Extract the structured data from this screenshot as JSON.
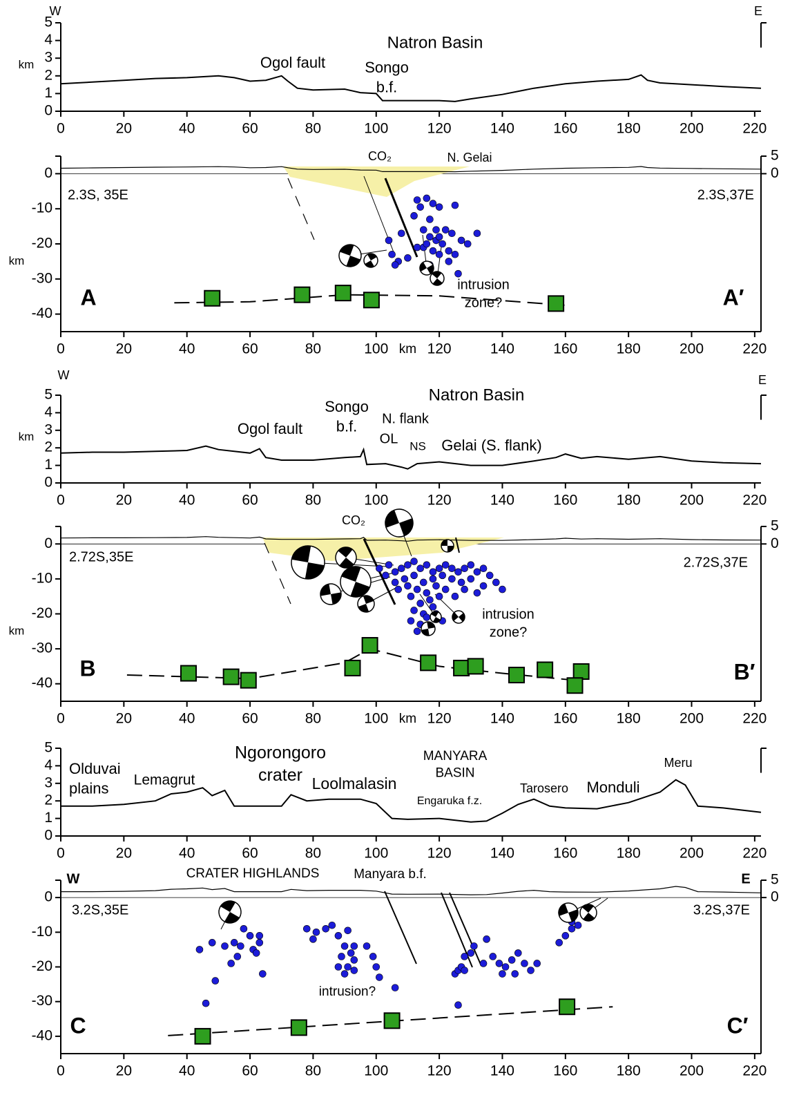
{
  "chart_data": [
    {
      "type": "line",
      "ylabel": "km",
      "xlim": [
        0,
        222
      ],
      "ylim": [
        0,
        5
      ],
      "xticks": [
        0,
        20,
        40,
        60,
        80,
        100,
        120,
        140,
        160,
        180,
        200,
        220
      ],
      "yticks": [
        0,
        1,
        2,
        3,
        4,
        5
      ],
      "x": [
        0,
        10,
        20,
        30,
        40,
        50,
        55,
        60,
        65,
        70,
        72,
        75,
        80,
        90,
        95,
        100,
        102,
        110,
        120,
        125,
        130,
        140,
        150,
        160,
        170,
        180,
        184,
        186,
        190,
        200,
        210,
        222
      ],
      "values": [
        1.55,
        1.65,
        1.75,
        1.85,
        1.9,
        2.0,
        1.9,
        1.7,
        1.75,
        2.0,
        1.7,
        1.3,
        1.2,
        1.25,
        1.05,
        1.0,
        0.6,
        0.6,
        0.6,
        0.55,
        0.7,
        0.95,
        1.3,
        1.55,
        1.7,
        1.8,
        2.05,
        1.75,
        1.6,
        1.5,
        1.4,
        1.3
      ],
      "color": "#000000",
      "annotations": [
        "W",
        "E",
        "Natron Basin",
        "Ogol fault",
        [
          "Songo",
          "b.f."
        ]
      ]
    },
    {
      "type": "scatter",
      "ylabel": "km",
      "xlabel": "km",
      "xlim": [
        0,
        222
      ],
      "ylim": [
        -45,
        5
      ],
      "xticks": [
        0,
        20,
        40,
        60,
        80,
        100,
        120,
        140,
        160,
        180,
        200,
        220
      ],
      "yticks": [
        -40,
        -30,
        -20,
        -10,
        0
      ],
      "y2ticks": [
        0,
        5
      ],
      "earthquakes": {
        "color": "#1c1cd8",
        "x": [
          113,
          116,
          118,
          114,
          120,
          125,
          112,
          117,
          119,
          115,
          108,
          122,
          124,
          132,
          127,
          117,
          119,
          121,
          113,
          115,
          118,
          120,
          123,
          125,
          129,
          123,
          117,
          110,
          105,
          107,
          104,
          106,
          126,
          120,
          116
        ],
        "y": [
          -7.5,
          -7,
          -8.5,
          -9.5,
          -9.5,
          -9,
          -12,
          -13,
          -16,
          -16,
          -17,
          -16,
          -17,
          -17,
          -19,
          -18,
          -19,
          -20,
          -21,
          -21,
          -22,
          -23,
          -22,
          -23,
          -20,
          -25,
          -26,
          -24,
          -23,
          -25,
          -19,
          -26,
          -28.5,
          -18,
          -20
        ]
      },
      "moho": {
        "color": "#2e9e1f",
        "x": [
          48,
          76.5,
          89.5,
          98.5,
          157
        ],
        "y": [
          -35.5,
          -34.5,
          -34,
          -36,
          -37
        ]
      },
      "moho_trend": {
        "x": [
          36,
          60,
          90,
          120,
          160
        ],
        "y": [
          -36.8,
          -36.5,
          -34.5,
          -34.8,
          -37.5
        ]
      },
      "annotations": [
        "2.3S, 35E",
        "2.3S,37E",
        "A",
        "A′",
        "CO₂",
        "N. Gelai",
        [
          "intrusion",
          "zone?"
        ]
      ]
    },
    {
      "type": "line",
      "ylabel": "km",
      "xlim": [
        0,
        222
      ],
      "ylim": [
        0,
        5
      ],
      "xticks": [
        0,
        20,
        40,
        60,
        80,
        100,
        120,
        140,
        160,
        180,
        200,
        220
      ],
      "yticks": [
        0,
        1,
        2,
        3,
        4,
        5
      ],
      "x": [
        0,
        10,
        20,
        30,
        40,
        46,
        50,
        55,
        60,
        63,
        65,
        70,
        80,
        90,
        95,
        96,
        97,
        103,
        108,
        110,
        113,
        120,
        130,
        140,
        150,
        157,
        160,
        165,
        170,
        180,
        190,
        200,
        210,
        222
      ],
      "values": [
        1.7,
        1.75,
        1.75,
        1.8,
        1.85,
        2.1,
        1.9,
        1.8,
        1.7,
        1.95,
        1.45,
        1.3,
        1.3,
        1.45,
        1.5,
        1.9,
        1.05,
        1.1,
        0.9,
        0.8,
        1.1,
        1.2,
        1.0,
        1.0,
        1.25,
        1.45,
        1.65,
        1.4,
        1.5,
        1.35,
        1.5,
        1.25,
        1.15,
        1.1
      ],
      "color": "#000000",
      "annotations": [
        "W",
        "E",
        "Natron Basin",
        [
          "Songo",
          "b.f."
        ],
        "Ogol fault",
        "N. flank",
        "OL",
        "NS",
        "Gelai (S. flank)"
      ]
    },
    {
      "type": "scatter",
      "ylabel": "km",
      "xlabel": "km",
      "xlim": [
        0,
        222
      ],
      "ylim": [
        -45,
        5
      ],
      "xticks": [
        0,
        20,
        40,
        60,
        80,
        100,
        120,
        140,
        160,
        180,
        200,
        220
      ],
      "yticks": [
        -40,
        -30,
        -20,
        -10,
        0
      ],
      "y2ticks": [
        0,
        5
      ],
      "earthquakes": {
        "color": "#1c1cd8",
        "x": [
          104,
          106,
          108,
          110,
          112,
          114,
          116,
          118,
          120,
          122,
          124,
          126,
          128,
          130,
          132,
          134,
          136,
          138,
          134,
          130,
          127,
          124,
          121,
          118,
          115,
          112,
          109,
          106,
          103,
          101,
          113,
          116,
          119,
          122,
          128,
          111,
          114,
          117,
          120,
          112,
          115,
          118,
          111,
          114,
          116,
          113,
          117,
          125,
          132,
          140,
          110,
          107,
          119,
          121
        ],
        "y": [
          -6,
          -8,
          -7,
          -6,
          -5,
          -7,
          -6,
          -8,
          -7,
          -6,
          -7,
          -8,
          -7,
          -6,
          -8,
          -7,
          -9,
          -11,
          -12,
          -10,
          -11,
          -10,
          -9,
          -10,
          -11,
          -9,
          -10,
          -11,
          -9,
          -7,
          -13,
          -14,
          -12,
          -13,
          -13,
          -15,
          -17,
          -16,
          -15,
          -19,
          -20,
          -18,
          -22,
          -23,
          -21,
          -25,
          -24,
          -15,
          -14,
          -13,
          -12,
          -13,
          -20,
          -22
        ]
      },
      "moho": {
        "color": "#2e9e1f",
        "x": [
          40.5,
          54,
          59.5,
          92.5,
          98,
          116.5,
          127,
          131.5,
          144.5,
          153.5,
          165,
          163
        ],
        "y": [
          -37,
          -38,
          -39,
          -35.5,
          -29,
          -34,
          -35.5,
          -35,
          -37.5,
          -36,
          -36.5,
          -40.5
        ]
      },
      "moho_trend": {
        "x": [
          21,
          60,
          90,
          98,
          120,
          140,
          163
        ],
        "y": [
          -37.5,
          -38.5,
          -34,
          -30,
          -35,
          -37,
          -39
        ]
      },
      "annotations": [
        "2.72S,35E",
        "2.72S,37E",
        "B",
        "B′",
        "CO₂",
        [
          "intrusion",
          "zone?"
        ]
      ]
    },
    {
      "type": "line",
      "xlim": [
        0,
        222
      ],
      "ylim": [
        0,
        5
      ],
      "xticks": [
        0,
        20,
        40,
        60,
        80,
        100,
        120,
        140,
        160,
        180,
        200,
        220
      ],
      "yticks": [
        0,
        1,
        2,
        3,
        4,
        5
      ],
      "x": [
        0,
        10,
        20,
        30,
        35,
        40,
        45,
        48,
        52,
        55,
        60,
        70,
        73,
        78,
        85,
        95,
        100,
        105,
        110,
        120,
        130,
        135,
        140,
        145,
        150,
        155,
        160,
        170,
        180,
        190,
        195,
        198,
        202,
        210,
        222
      ],
      "values": [
        1.7,
        1.7,
        1.8,
        2.0,
        2.4,
        2.5,
        2.75,
        2.3,
        2.6,
        1.7,
        1.7,
        1.7,
        2.35,
        2.0,
        2.1,
        2.1,
        1.85,
        1.0,
        0.95,
        1.0,
        0.8,
        0.85,
        1.3,
        1.8,
        2.1,
        1.7,
        1.6,
        1.55,
        1.9,
        2.5,
        3.2,
        2.9,
        1.7,
        1.6,
        1.35
      ],
      "color": "#000000",
      "annotations": [
        [
          "Olduvai",
          "plains"
        ],
        "Lemagrut",
        [
          "Ngorongoro",
          "crater"
        ],
        "Loolmalasin",
        [
          "MANYARA",
          "BASIN"
        ],
        "Engaruka f.z.",
        "Tarosero",
        "Monduli",
        "Meru"
      ]
    },
    {
      "type": "scatter",
      "xlim": [
        0,
        222
      ],
      "ylim": [
        -45,
        5
      ],
      "xticks": [
        0,
        20,
        40,
        60,
        80,
        100,
        120,
        140,
        160,
        180,
        200,
        220
      ],
      "yticks": [
        -40,
        -30,
        -20,
        -10,
        0
      ],
      "y2ticks": [
        0,
        5
      ],
      "earthquakes": {
        "color": "#1c1cd8",
        "x": [
          44,
          48,
          58,
          60,
          55,
          57,
          52,
          63,
          63,
          61,
          62,
          56,
          54,
          64,
          49,
          46,
          78,
          80,
          81,
          84,
          86,
          88,
          91,
          93,
          90,
          92,
          89,
          93,
          91,
          93,
          90,
          88,
          99,
          100,
          101,
          106,
          97,
          125,
          126,
          127,
          128,
          130,
          131,
          135,
          128,
          126,
          134,
          137,
          139,
          141,
          143,
          145,
          147,
          149,
          151,
          140,
          144,
          158,
          160,
          162,
          164,
          162
        ],
        "y": [
          -15,
          -13,
          -9,
          -11,
          -13,
          -14,
          -14,
          -11,
          -13,
          -15,
          -16,
          -17,
          -19,
          -22,
          -24,
          -30.5,
          -9,
          -12,
          -10,
          -9,
          -8,
          -11,
          -9.5,
          -14,
          -14,
          -16,
          -17,
          -18,
          -20,
          -21,
          -22,
          -20,
          -17,
          -20,
          -23,
          -26,
          -14,
          -22,
          -21,
          -20,
          -17,
          -16,
          -14,
          -12,
          -21,
          -31,
          -19,
          -17,
          -19,
          -20,
          -18,
          -16,
          -19,
          -21,
          -19,
          -22,
          -22,
          -13,
          -11,
          -9,
          -8,
          -7
        ]
      },
      "moho": {
        "color": "#2e9e1f",
        "x": [
          45,
          75.5,
          105,
          160.5
        ],
        "y": [
          -40,
          -37.5,
          -35.5,
          -31.5
        ]
      },
      "moho_trend": {
        "x": [
          34,
          175
        ],
        "y": [
          -39.8,
          -31.5
        ]
      },
      "annotations": [
        "W",
        "E",
        "CRATER HIGHLANDS",
        "Manyara b.f.",
        "3.2S,35E",
        "3.2S,37E",
        "intrusion?",
        "C",
        "C′"
      ]
    }
  ]
}
